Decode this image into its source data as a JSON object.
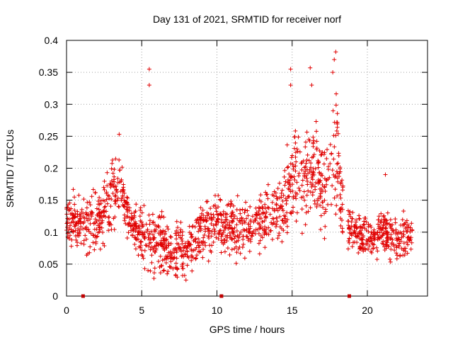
{
  "chart_data": {
    "type": "scatter",
    "title": "Day 131 of 2021, SRMTID for receiver norf",
    "xlabel": "GPS time / hours",
    "ylabel": "SRMTID / TECUs",
    "xlim": [
      0,
      24
    ],
    "ylim": [
      0,
      0.4
    ],
    "xticks": [
      0,
      5,
      10,
      15,
      20
    ],
    "yticks": [
      0,
      0.05,
      0.1,
      0.15,
      0.2,
      0.25,
      0.3,
      0.35,
      0.4
    ],
    "xtick_labels": [
      "0",
      "5",
      "10",
      "15",
      "20"
    ],
    "ytick_labels": [
      "0",
      "0.05",
      "0.1",
      "0.15",
      "0.2",
      "0.25",
      "0.3",
      "0.35",
      "0.4"
    ],
    "grid": true,
    "series": [
      {
        "name": "SRMTID",
        "marker": "plus",
        "color": "#e00000",
        "segments": [
          {
            "x0": 0.0,
            "x1": 18.4,
            "gap_after": true
          },
          {
            "x0": 18.7,
            "x1": 23.0,
            "gap_after": false
          }
        ],
        "profile_hours": [
          0,
          1,
          2,
          3,
          3.5,
          4,
          4.5,
          5,
          6,
          7,
          8,
          9,
          10,
          11,
          12,
          13,
          14,
          14.8,
          15.2,
          15.8,
          16.5,
          17,
          17.5,
          18,
          18.4,
          19,
          20,
          21,
          22,
          23
        ],
        "profile_mean": [
          0.12,
          0.11,
          0.12,
          0.15,
          0.18,
          0.13,
          0.11,
          0.09,
          0.08,
          0.07,
          0.07,
          0.1,
          0.12,
          0.11,
          0.1,
          0.12,
          0.13,
          0.17,
          0.2,
          0.18,
          0.2,
          0.17,
          0.19,
          0.22,
          0.12,
          0.1,
          0.09,
          0.1,
          0.09,
          0.1
        ],
        "profile_spread": [
          0.04,
          0.04,
          0.04,
          0.05,
          0.05,
          0.03,
          0.03,
          0.04,
          0.04,
          0.04,
          0.04,
          0.04,
          0.04,
          0.04,
          0.04,
          0.04,
          0.04,
          0.07,
          0.07,
          0.06,
          0.06,
          0.06,
          0.06,
          0.08,
          0.04,
          0.03,
          0.03,
          0.03,
          0.03,
          0.03
        ],
        "peaks": [
          {
            "x": 5.5,
            "y": 0.355
          },
          {
            "x": 5.5,
            "y": 0.33
          },
          {
            "x": 14.9,
            "y": 0.355
          },
          {
            "x": 14.9,
            "y": 0.33
          },
          {
            "x": 16.2,
            "y": 0.357
          },
          {
            "x": 16.3,
            "y": 0.33
          },
          {
            "x": 17.9,
            "y": 0.382
          },
          {
            "x": 17.8,
            "y": 0.37
          },
          {
            "x": 17.7,
            "y": 0.35
          },
          {
            "x": 3.5,
            "y": 0.253
          },
          {
            "x": 21.2,
            "y": 0.19
          }
        ],
        "n_points": 1600,
        "seed": 131
      }
    ],
    "axis_markers": {
      "color": "#c00000",
      "x": [
        1.1,
        10.3,
        18.8
      ],
      "y": 0
    }
  }
}
